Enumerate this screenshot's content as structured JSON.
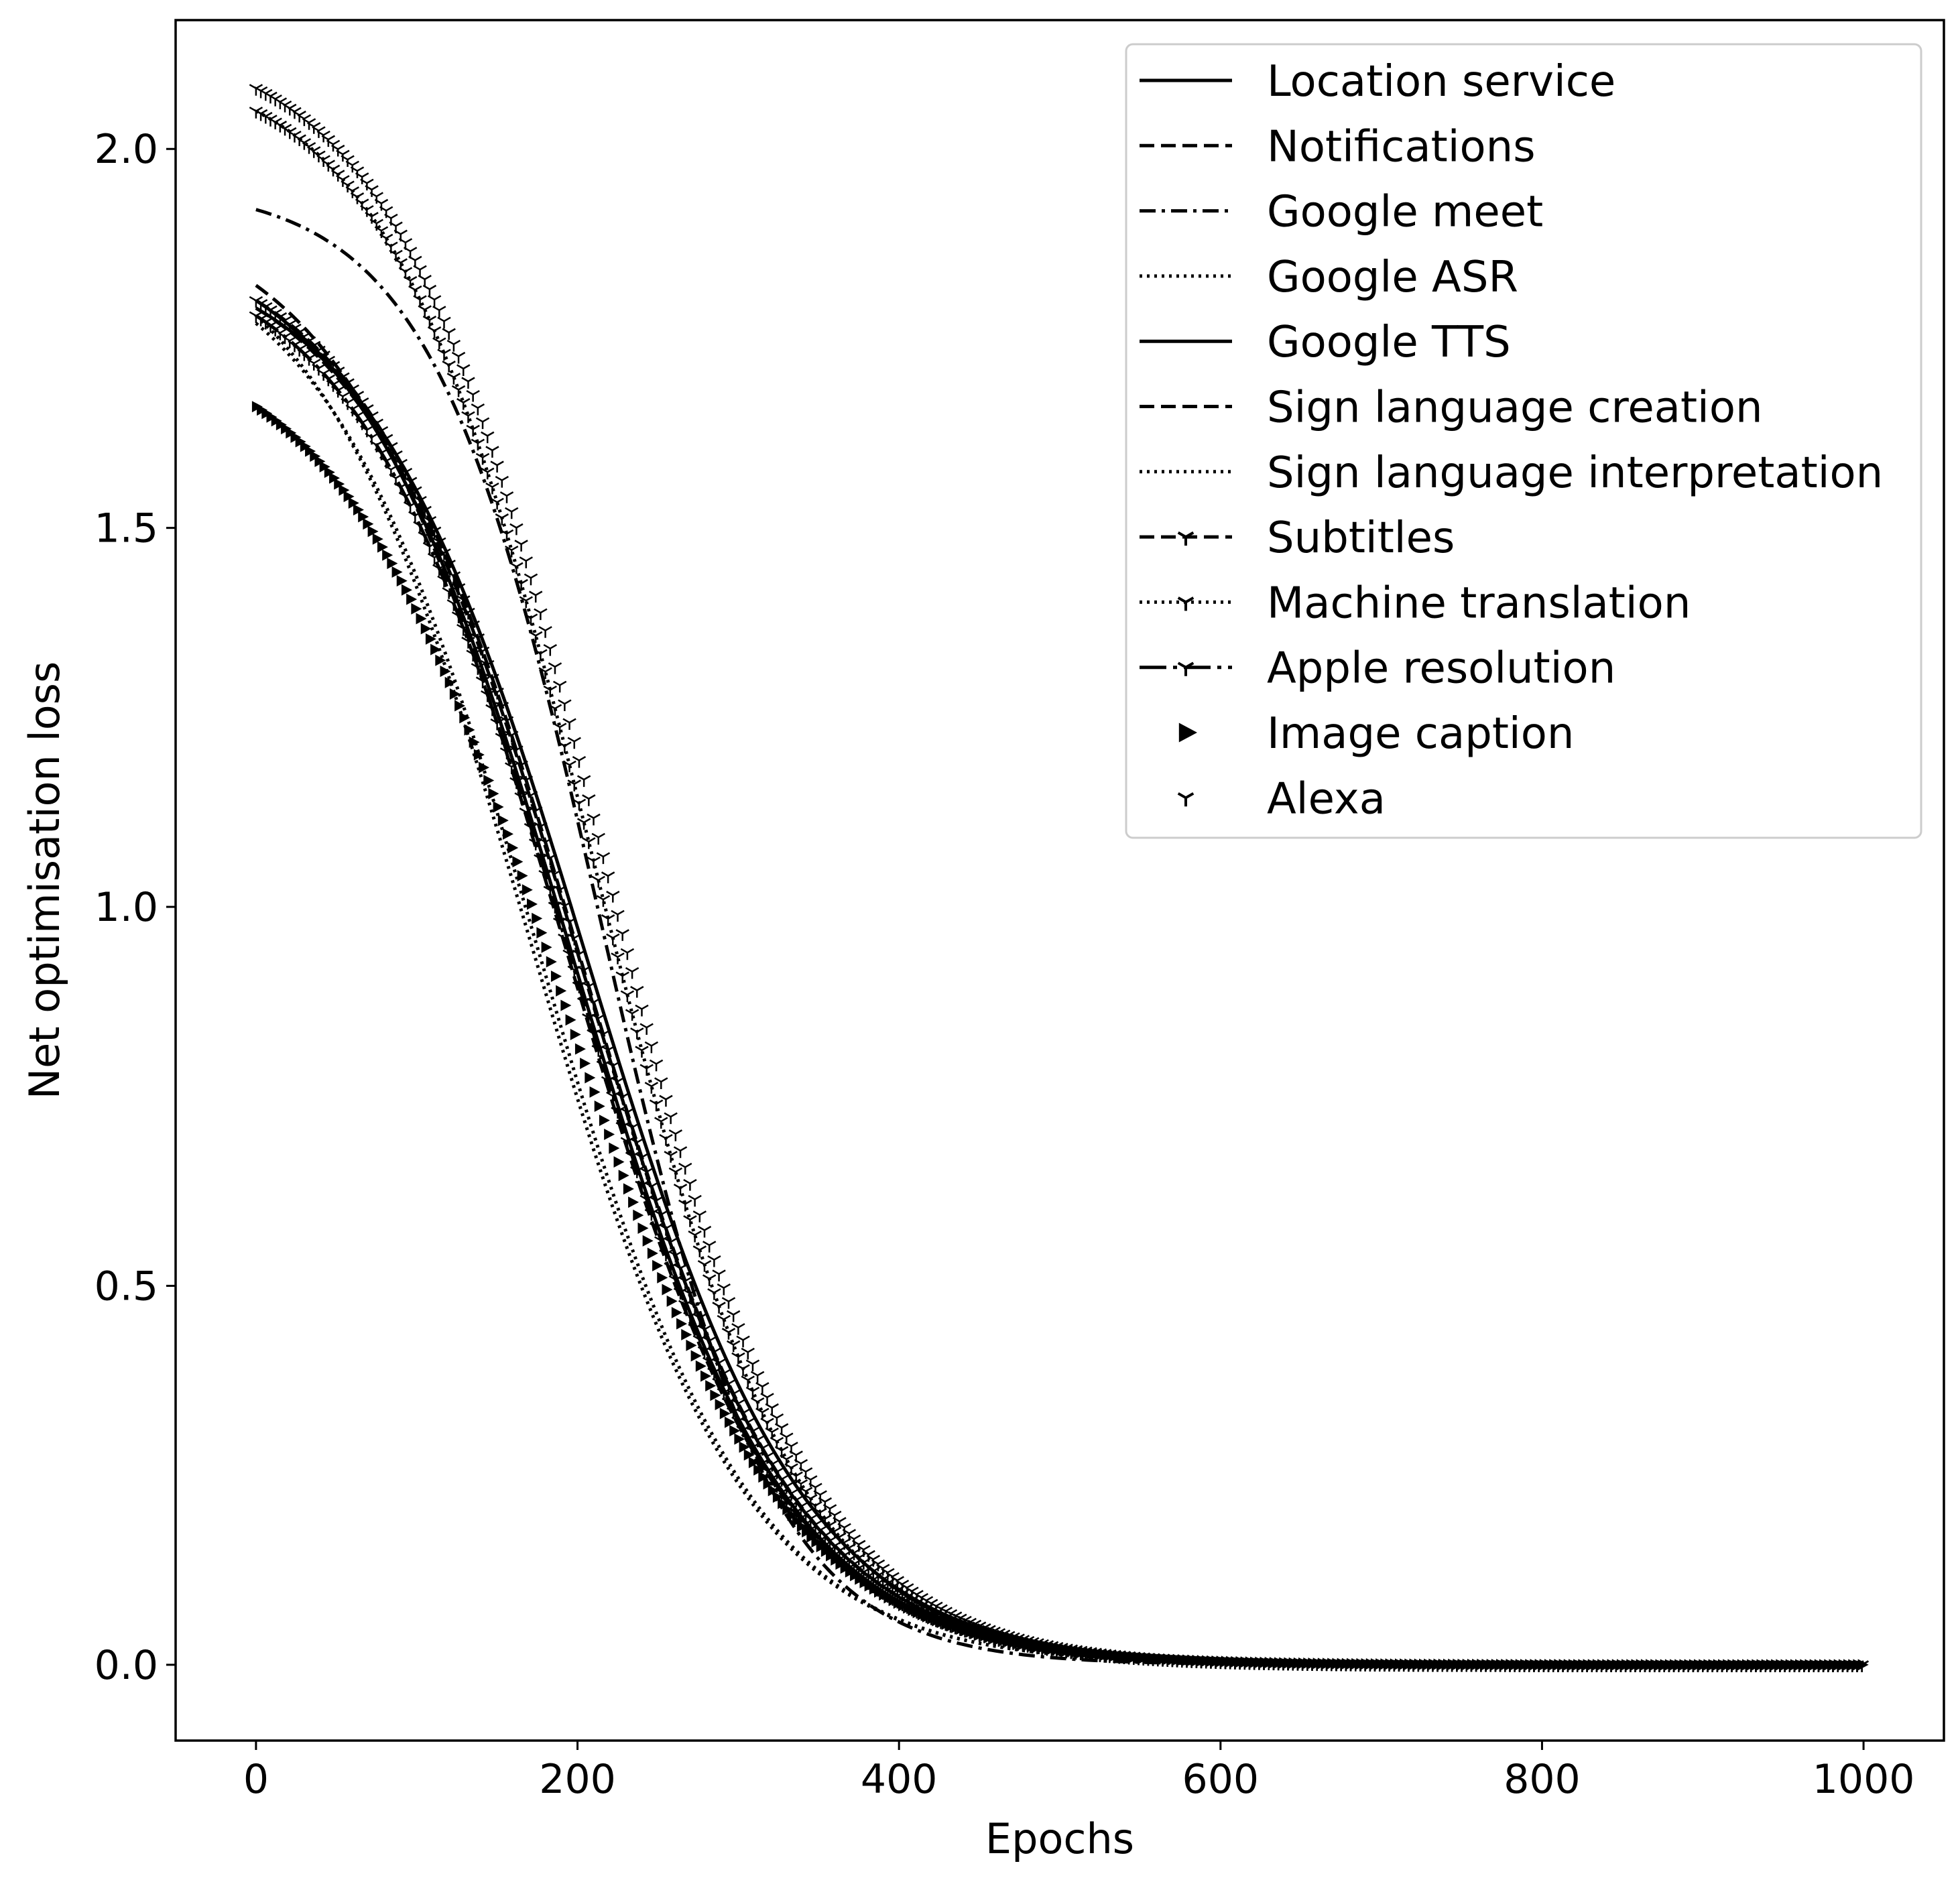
{
  "chart_data": {
    "type": "line",
    "title": "",
    "xlabel": "Epochs",
    "ylabel": "Net optimisation loss",
    "xlim": [
      -50,
      1050
    ],
    "ylim": [
      -0.1,
      2.17
    ],
    "xticks": [
      0,
      200,
      400,
      600,
      800,
      1000
    ],
    "xtick_labels": [
      "0",
      "200",
      "400",
      "600",
      "800",
      "1000"
    ],
    "yticks": [
      0.0,
      0.5,
      1.0,
      1.5,
      2.0
    ],
    "ytick_labels": [
      "0.0",
      "0.5",
      "1.0",
      "1.5",
      "2.0"
    ],
    "grid": false,
    "legend_position": "top-right",
    "line_color": "#000000",
    "series": [
      {
        "name": "Location service",
        "style": "solid",
        "marker": "none",
        "start": 1.8,
        "midpoint": 195,
        "steepness": 0.015
      },
      {
        "name": "Notifications",
        "style": "dashed",
        "marker": "none",
        "start": 1.82,
        "midpoint": 190,
        "steepness": 0.0148
      },
      {
        "name": "Google meet",
        "style": "dashdot",
        "marker": "none",
        "start": 1.92,
        "midpoint": 215,
        "steepness": 0.019
      },
      {
        "name": "Google ASR",
        "style": "dotted",
        "marker": "none",
        "start": 1.78,
        "midpoint": 170,
        "steepness": 0.015
      },
      {
        "name": "Google TTS",
        "style": "solid",
        "marker": "none",
        "start": 1.79,
        "midpoint": 205,
        "steepness": 0.0148
      },
      {
        "name": "Sign language creation",
        "style": "dashed",
        "marker": "none",
        "start": 1.79,
        "midpoint": 200,
        "steepness": 0.015
      },
      {
        "name": "Sign language interpretation",
        "style": "dotted",
        "marker": "none",
        "start": 1.77,
        "midpoint": 175,
        "steepness": 0.0152
      },
      {
        "name": "Subtitles",
        "style": "dashed",
        "marker": "tri_down",
        "start": 1.8,
        "midpoint": 200,
        "steepness": 0.015
      },
      {
        "name": "Machine translation",
        "style": "dotted",
        "marker": "tri_down",
        "start": 2.05,
        "midpoint": 210,
        "steepness": 0.016
      },
      {
        "name": "Apple resolution",
        "style": "dashdot_long",
        "marker": "tri_down",
        "start": 1.78,
        "midpoint": 195,
        "steepness": 0.015
      },
      {
        "name": "Image caption",
        "style": "none",
        "marker": "triangle_right",
        "start": 1.66,
        "midpoint": 190,
        "steepness": 0.0145
      },
      {
        "name": "Alexa",
        "style": "none",
        "marker": "tri_down",
        "start": 2.08,
        "midpoint": 215,
        "steepness": 0.0158
      }
    ]
  }
}
